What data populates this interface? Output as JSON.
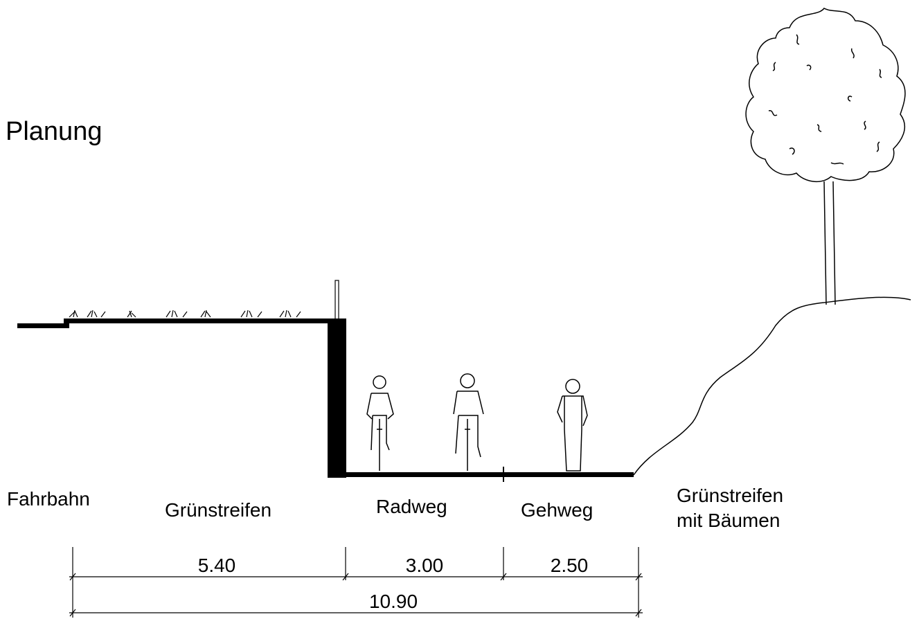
{
  "title": "Planung",
  "zones": [
    {
      "label": [
        "Fahrbahn"
      ]
    },
    {
      "label": [
        "Grünstreifen"
      ]
    },
    {
      "label": [
        "Radweg"
      ]
    },
    {
      "label": [
        "Gehweg"
      ]
    },
    {
      "label": [
        "Grünstreifen",
        "mit Bäumen"
      ]
    }
  ],
  "dimensions": [
    "5.40",
    "3.00",
    "2.50"
  ],
  "total": "10.90"
}
